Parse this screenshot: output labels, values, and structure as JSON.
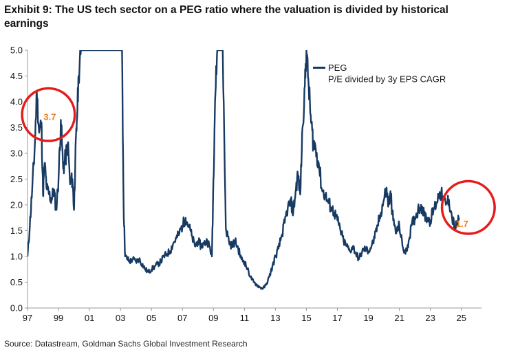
{
  "title": "Exhibit 9: The US tech sector on a PEG ratio where the valuation is divided by historical earnings",
  "source": "Source: Datastream, Goldman Sachs Global Investment Research",
  "colors": {
    "line": "#173a62",
    "circle": "#e41c1c",
    "callout": "#ee7d12",
    "axis": "#999999"
  },
  "chart_data": {
    "type": "line",
    "title": "Exhibit 9: The US tech sector on a PEG ratio where the valuation is divided by historical earnings",
    "xlabel": "",
    "ylabel": "",
    "xlim": [
      1997,
      2026
    ],
    "ylim": [
      0.0,
      5.0
    ],
    "x_tick_labels": [
      "97",
      "99",
      "01",
      "03",
      "05",
      "07",
      "09",
      "11",
      "13",
      "15",
      "17",
      "19",
      "21",
      "23",
      "25"
    ],
    "x_tick_years": [
      1997,
      1999,
      2001,
      2003,
      2005,
      2007,
      2009,
      2011,
      2013,
      2015,
      2017,
      2019,
      2021,
      2023,
      2025
    ],
    "y_ticks": [
      "0.0",
      "0.5",
      "1.0",
      "1.5",
      "2.0",
      "2.5",
      "3.0",
      "3.5",
      "4.0",
      "4.5",
      "5.0"
    ],
    "legend": [
      "PEG",
      "P/E divided by 3y EPS CAGR"
    ],
    "legend_position": "top-right",
    "series": [
      {
        "name": "PEG",
        "x": [
          1997.0,
          1997.15,
          1997.3,
          1997.45,
          1997.6,
          1997.75,
          1997.9,
          1998.0,
          1998.1,
          1998.25,
          1998.4,
          1998.55,
          1998.7,
          1998.85,
          1999.0,
          1999.15,
          1999.3,
          1999.45,
          1999.6,
          1999.75,
          1999.9,
          2000.0,
          2000.08,
          2000.18,
          2000.3,
          2000.45,
          2000.6,
          2003.1,
          2003.2,
          2003.3,
          2003.45,
          2003.6,
          2003.8,
          2004.0,
          2004.2,
          2004.4,
          2004.6,
          2004.8,
          2005.0,
          2005.2,
          2005.4,
          2005.6,
          2005.8,
          2006.0,
          2006.2,
          2006.4,
          2006.6,
          2006.8,
          2007.0,
          2007.2,
          2007.4,
          2007.6,
          2007.8,
          2008.0,
          2008.2,
          2008.4,
          2008.6,
          2008.75,
          2008.9,
          2009.0,
          2009.1,
          2009.25,
          2009.4,
          2009.6,
          2009.8,
          2010.0,
          2010.2,
          2010.4,
          2010.6,
          2010.8,
          2011.0,
          2011.2,
          2011.4,
          2011.6,
          2011.8,
          2012.0,
          2012.2,
          2012.4,
          2012.6,
          2012.8,
          2013.0,
          2013.2,
          2013.4,
          2013.6,
          2013.8,
          2014.0,
          2014.15,
          2014.3,
          2014.45,
          2014.6,
          2014.75,
          2014.9,
          2015.0,
          2015.15,
          2015.3,
          2015.45,
          2015.6,
          2015.8,
          2016.0,
          2016.2,
          2016.4,
          2016.6,
          2016.8,
          2017.0,
          2017.2,
          2017.4,
          2017.6,
          2017.8,
          2018.0,
          2018.2,
          2018.4,
          2018.6,
          2018.8,
          2019.0,
          2019.2,
          2019.4,
          2019.6,
          2019.8,
          2020.0,
          2020.15,
          2020.3,
          2020.45,
          2020.6,
          2020.8,
          2021.0,
          2021.2,
          2021.4,
          2021.6,
          2021.8,
          2022.0,
          2022.2,
          2022.4,
          2022.6,
          2022.8,
          2023.0,
          2023.2,
          2023.4,
          2023.6,
          2023.8,
          2024.0,
          2024.2,
          2024.4,
          2024.6,
          2024.75,
          2024.85
        ],
        "y": [
          1.0,
          1.6,
          2.3,
          3.0,
          4.2,
          3.4,
          3.6,
          2.2,
          2.8,
          2.3,
          2.2,
          2.1,
          2.3,
          1.9,
          2.5,
          3.65,
          2.7,
          2.9,
          3.2,
          2.4,
          2.5,
          1.9,
          2.8,
          3.6,
          4.5,
          5.0,
          5.0,
          5.0,
          2.0,
          1.0,
          0.95,
          0.9,
          0.95,
          0.9,
          0.95,
          0.85,
          0.75,
          0.7,
          0.75,
          0.8,
          0.85,
          0.9,
          1.0,
          1.05,
          1.1,
          1.25,
          1.35,
          1.45,
          1.6,
          1.75,
          1.6,
          1.4,
          1.2,
          1.3,
          1.2,
          1.25,
          1.3,
          1.2,
          1.0,
          2.5,
          4.0,
          5.0,
          5.0,
          5.0,
          1.55,
          1.3,
          1.2,
          1.3,
          1.15,
          0.95,
          0.9,
          0.75,
          0.6,
          0.5,
          0.45,
          0.4,
          0.38,
          0.45,
          0.6,
          0.8,
          1.0,
          1.15,
          1.4,
          1.65,
          1.95,
          2.05,
          1.85,
          2.25,
          2.6,
          2.2,
          3.5,
          4.3,
          5.0,
          4.3,
          3.6,
          3.2,
          3.1,
          2.8,
          2.3,
          2.2,
          2.05,
          1.95,
          1.85,
          1.7,
          1.5,
          1.3,
          1.2,
          1.1,
          1.2,
          1.05,
          0.95,
          1.1,
          1.15,
          1.1,
          1.2,
          1.35,
          1.6,
          1.85,
          2.1,
          2.3,
          2.0,
          2.2,
          1.7,
          1.45,
          1.6,
          1.2,
          1.05,
          1.3,
          1.6,
          1.75,
          1.9,
          2.0,
          1.8,
          1.75,
          1.7,
          1.9,
          2.05,
          2.25,
          2.15,
          2.0,
          2.1,
          1.75,
          1.55,
          1.65,
          1.7
        ]
      }
    ],
    "annotations": [
      {
        "label": "3.7",
        "year": 1998.35,
        "value": 3.75,
        "radius_years": 1.7
      },
      {
        "label": "1.7",
        "year": 2025.45,
        "value": 1.95,
        "radius_years": 1.7
      }
    ]
  }
}
